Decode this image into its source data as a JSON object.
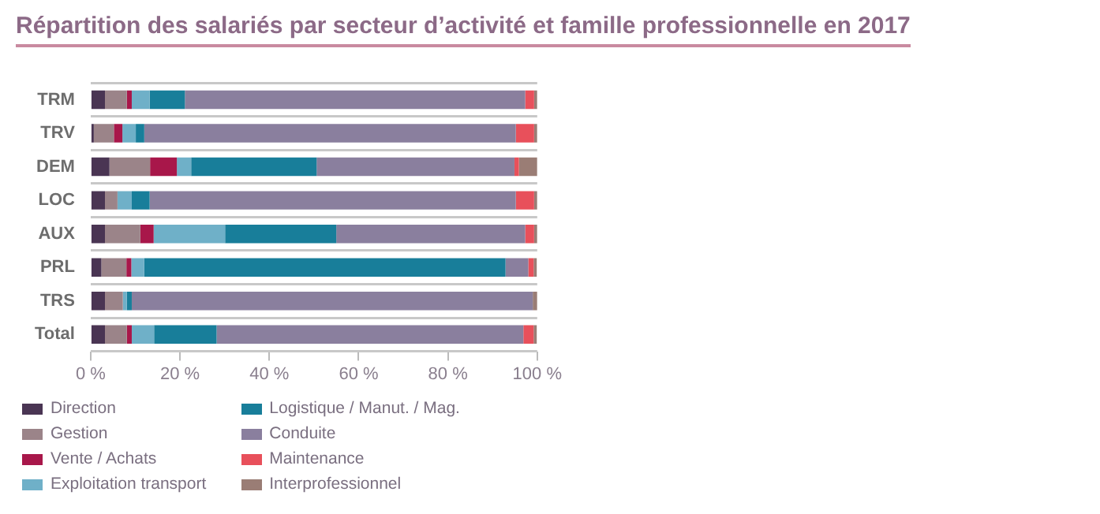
{
  "chart_data": {
    "type": "bar",
    "orientation": "horizontal",
    "stacked": true,
    "title": "Répartition des salariés par secteur d’activité et famille professionnelle en 2017",
    "categories": [
      "TRM",
      "TRV",
      "DEM",
      "LOC",
      "AUX",
      "PRL",
      "TRS",
      "Total"
    ],
    "series": [
      {
        "name": "Direction",
        "color": "#4a3553",
        "values": [
          3.2,
          0.7,
          4.2,
          3.2,
          3.2,
          2.4,
          3.2,
          3.2
        ]
      },
      {
        "name": "Gestion",
        "color": "#9b8489",
        "values": [
          4.9,
          4.5,
          9.1,
          2.8,
          7.9,
          5.6,
          4.0,
          4.9
        ]
      },
      {
        "name": "Vente / Achats",
        "color": "#a8174a",
        "values": [
          1.1,
          1.9,
          6.0,
          0,
          3.0,
          1.1,
          0,
          1.1
        ]
      },
      {
        "name": "Exploitation transport",
        "color": "#6fb0c8",
        "values": [
          4.0,
          3.0,
          3.2,
          3.2,
          16.0,
          2.9,
          0.9,
          5.0
        ]
      },
      {
        "name": "Logistique / Manut. / Mag.",
        "color": "#187e9a",
        "values": [
          7.9,
          1.9,
          28.1,
          4.0,
          24.9,
          80.9,
          1.1,
          14.0
        ]
      },
      {
        "name": "Conduite",
        "color": "#8a7f9e",
        "values": [
          76.2,
          83.2,
          44.3,
          82.0,
          42.3,
          5.1,
          89.8,
          68.7
        ]
      },
      {
        "name": "Maintenance",
        "color": "#e8505b",
        "values": [
          2.0,
          4.1,
          1.0,
          4.1,
          2.0,
          1.2,
          0,
          2.3
        ]
      },
      {
        "name": "Interprofessionnel",
        "color": "#9a7d75",
        "values": [
          0.7,
          0.7,
          4.1,
          0.7,
          0.7,
          0.7,
          1.0,
          0.7
        ]
      }
    ],
    "xlim": [
      0,
      100
    ],
    "xticks": [
      {
        "value": 0,
        "label": "0 %"
      },
      {
        "value": 20,
        "label": "20 %"
      },
      {
        "value": 40,
        "label": "40 %"
      },
      {
        "value": 60,
        "label": "60 %"
      },
      {
        "value": 80,
        "label": "80 %"
      },
      {
        "value": 100,
        "label": "100 %"
      }
    ],
    "grid": "y",
    "legend": "bottom"
  }
}
